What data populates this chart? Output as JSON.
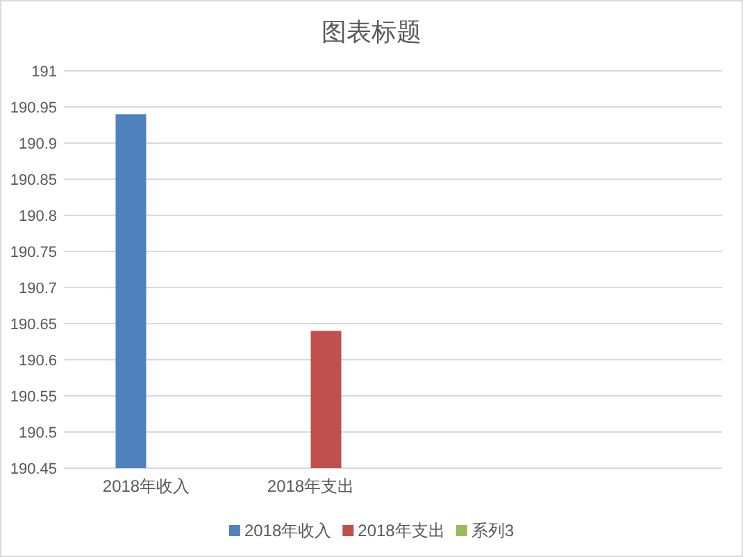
{
  "chart_data": {
    "type": "bar",
    "title": "图表标题",
    "categories": [
      "2018年收入",
      "2018年支出",
      null,
      null
    ],
    "series": [
      {
        "name": "2018年收入",
        "color": "#4f81bd",
        "values": [
          190.94,
          null,
          null,
          null
        ]
      },
      {
        "name": "2018年支出",
        "color": "#c0504d",
        "values": [
          null,
          190.64,
          null,
          null
        ]
      },
      {
        "name": "系列3",
        "color": "#9bbb59",
        "values": [
          null,
          null,
          null,
          null
        ]
      }
    ],
    "ylim": [
      190.45,
      191
    ],
    "yticks": [
      190.45,
      190.5,
      190.55,
      190.6,
      190.65,
      190.7,
      190.75,
      190.8,
      190.85,
      190.9,
      190.95,
      191
    ],
    "grid": "y",
    "legend": "bottom"
  }
}
